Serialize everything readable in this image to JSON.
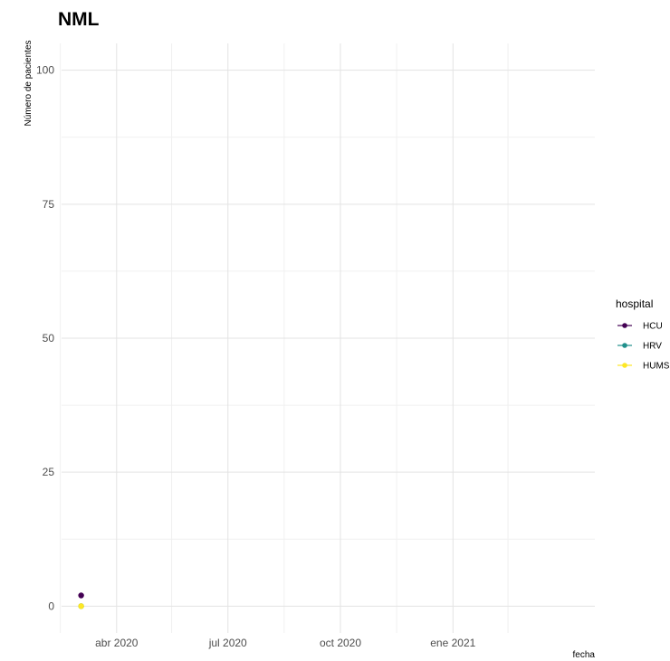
{
  "chart_data": {
    "type": "line",
    "title": "NML",
    "xlabel": "fecha",
    "ylabel": "Número de pacientes",
    "x_axis": {
      "type": "date",
      "range": [
        "2020-02-16",
        "2021-04-27"
      ],
      "ticks": [
        {
          "date": "2020-04-01",
          "label": "abr 2020"
        },
        {
          "date": "2020-07-01",
          "label": "jul 2020"
        },
        {
          "date": "2020-10-01",
          "label": "oct 2020"
        },
        {
          "date": "2021-01-01",
          "label": "ene 2021"
        }
      ],
      "minor_ticks": [
        "2020-02-15",
        "2020-05-16",
        "2020-08-16",
        "2020-11-16",
        "2021-02-15"
      ]
    },
    "y_axis": {
      "range": [
        -5,
        105
      ],
      "ticks": [
        0,
        25,
        50,
        75,
        100
      ],
      "minor_ticks": [
        12.5,
        37.5,
        62.5,
        87.5
      ]
    },
    "grid": true,
    "legend": {
      "title": "hospital",
      "position": "right"
    },
    "series": [
      {
        "name": "HCU",
        "color": "#440154",
        "points": [
          {
            "x": "2020-03-03",
            "y": 2
          }
        ]
      },
      {
        "name": "HRV",
        "color": "#21908C",
        "points": [
          {
            "x": "2020-03-03",
            "y": 0
          }
        ]
      },
      {
        "name": "HUMS",
        "color": "#FDE725",
        "points": [
          {
            "x": "2020-03-03",
            "y": 0
          }
        ]
      }
    ]
  }
}
